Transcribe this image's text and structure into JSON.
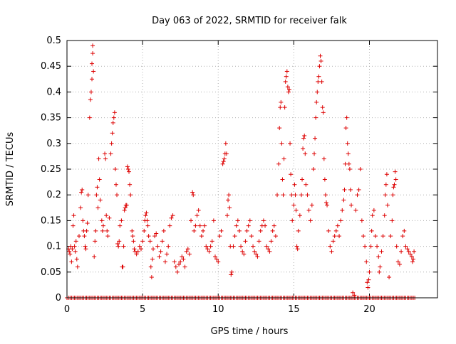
{
  "chart_data": {
    "type": "scatter",
    "title": "Day 063 of 2022, SRMTID for receiver falk",
    "xlabel": "GPS time / hours",
    "ylabel": "SRMTID / TECUs",
    "xlim": [
      0,
      24.5
    ],
    "ylim": [
      0,
      0.5
    ],
    "xticks": [
      0,
      5,
      10,
      15,
      20
    ],
    "yticks": [
      0,
      0.05,
      0.1,
      0.15,
      0.2,
      0.25,
      0.3,
      0.35,
      0.4,
      0.45,
      0.5
    ],
    "grid": true,
    "marker": "+",
    "color": "#dd0000",
    "series": [
      {
        "name": "",
        "points": [
          [
            0.1,
            0.095
          ],
          [
            0.15,
            0.09
          ],
          [
            0.2,
            0.085
          ],
          [
            0.25,
            0.1
          ],
          [
            0.3,
            0.07
          ],
          [
            0.35,
            0.095
          ],
          [
            0.4,
            0.14
          ],
          [
            0.45,
            0.16
          ],
          [
            0.5,
            0.1
          ],
          [
            0.55,
            0.09
          ],
          [
            0.6,
            0.11
          ],
          [
            0.65,
            0.075
          ],
          [
            0.7,
            0.06
          ],
          [
            0.8,
            0.12
          ],
          [
            0.9,
            0.175
          ],
          [
            0.95,
            0.205
          ],
          [
            1.0,
            0.21
          ],
          [
            1.05,
            0.15
          ],
          [
            1.1,
            0.13
          ],
          [
            1.15,
            0.12
          ],
          [
            1.2,
            0.1
          ],
          [
            1.25,
            0.095
          ],
          [
            1.3,
            0.13
          ],
          [
            1.35,
            0.145
          ],
          [
            1.4,
            0.2
          ],
          [
            1.5,
            0.35
          ],
          [
            1.55,
            0.385
          ],
          [
            1.6,
            0.4
          ],
          [
            1.65,
            0.425
          ],
          [
            1.65,
            0.455
          ],
          [
            1.7,
            0.475
          ],
          [
            1.7,
            0.49
          ],
          [
            1.75,
            0.44
          ],
          [
            1.8,
            0.08
          ],
          [
            1.85,
            0.11
          ],
          [
            1.9,
            0.13
          ],
          [
            1.95,
            0.2
          ],
          [
            2.0,
            0.215
          ],
          [
            2.05,
            0.175
          ],
          [
            2.1,
            0.27
          ],
          [
            2.15,
            0.23
          ],
          [
            2.2,
            0.19
          ],
          [
            2.3,
            0.15
          ],
          [
            2.35,
            0.13
          ],
          [
            2.4,
            0.14
          ],
          [
            2.5,
            0.28
          ],
          [
            2.55,
            0.27
          ],
          [
            2.6,
            0.16
          ],
          [
            2.65,
            0.13
          ],
          [
            2.7,
            0.12
          ],
          [
            2.8,
            0.155
          ],
          [
            2.9,
            0.28
          ],
          [
            2.95,
            0.3
          ],
          [
            3.0,
            0.32
          ],
          [
            3.05,
            0.34
          ],
          [
            3.1,
            0.35
          ],
          [
            3.15,
            0.36
          ],
          [
            3.2,
            0.25
          ],
          [
            3.25,
            0.22
          ],
          [
            3.3,
            0.2
          ],
          [
            3.35,
            0.105
          ],
          [
            3.4,
            0.1
          ],
          [
            3.45,
            0.11
          ],
          [
            3.5,
            0.14
          ],
          [
            3.6,
            0.15
          ],
          [
            3.65,
            0.06
          ],
          [
            3.7,
            0.06
          ],
          [
            3.75,
            0.1
          ],
          [
            3.8,
            0.17
          ],
          [
            3.85,
            0.175
          ],
          [
            3.9,
            0.18
          ],
          [
            3.95,
            0.18
          ],
          [
            4.0,
            0.255
          ],
          [
            4.05,
            0.25
          ],
          [
            4.1,
            0.245
          ],
          [
            4.15,
            0.22
          ],
          [
            4.2,
            0.2
          ],
          [
            4.3,
            0.13
          ],
          [
            4.35,
            0.12
          ],
          [
            4.4,
            0.11
          ],
          [
            4.45,
            0.095
          ],
          [
            4.5,
            0.09
          ],
          [
            4.6,
            0.085
          ],
          [
            4.7,
            0.09
          ],
          [
            4.8,
            0.1
          ],
          [
            4.9,
            0.095
          ],
          [
            5.0,
            0.11
          ],
          [
            5.1,
            0.13
          ],
          [
            5.15,
            0.15
          ],
          [
            5.2,
            0.16
          ],
          [
            5.25,
            0.165
          ],
          [
            5.3,
            0.15
          ],
          [
            5.35,
            0.14
          ],
          [
            5.4,
            0.12
          ],
          [
            5.5,
            0.11
          ],
          [
            5.55,
            0.06
          ],
          [
            5.6,
            0.04
          ],
          [
            5.65,
            0.075
          ],
          [
            5.7,
            0.095
          ],
          [
            5.8,
            0.12
          ],
          [
            5.9,
            0.125
          ],
          [
            6.0,
            0.1
          ],
          [
            6.1,
            0.08
          ],
          [
            6.2,
            0.09
          ],
          [
            6.3,
            0.11
          ],
          [
            6.4,
            0.13
          ],
          [
            6.5,
            0.07
          ],
          [
            6.6,
            0.085
          ],
          [
            6.7,
            0.1
          ],
          [
            6.8,
            0.14
          ],
          [
            6.9,
            0.155
          ],
          [
            7.0,
            0.16
          ],
          [
            7.1,
            0.07
          ],
          [
            7.2,
            0.06
          ],
          [
            7.3,
            0.05
          ],
          [
            7.4,
            0.065
          ],
          [
            7.5,
            0.07
          ],
          [
            7.6,
            0.08
          ],
          [
            7.7,
            0.075
          ],
          [
            7.8,
            0.06
          ],
          [
            7.9,
            0.09
          ],
          [
            8.0,
            0.095
          ],
          [
            8.1,
            0.085
          ],
          [
            8.2,
            0.15
          ],
          [
            8.3,
            0.205
          ],
          [
            8.35,
            0.2
          ],
          [
            8.4,
            0.13
          ],
          [
            8.5,
            0.14
          ],
          [
            8.6,
            0.16
          ],
          [
            8.7,
            0.17
          ],
          [
            8.8,
            0.14
          ],
          [
            8.9,
            0.12
          ],
          [
            9.0,
            0.13
          ],
          [
            9.1,
            0.14
          ],
          [
            9.2,
            0.1
          ],
          [
            9.3,
            0.095
          ],
          [
            9.4,
            0.09
          ],
          [
            9.5,
            0.1
          ],
          [
            9.6,
            0.11
          ],
          [
            9.7,
            0.15
          ],
          [
            9.8,
            0.08
          ],
          [
            9.9,
            0.075
          ],
          [
            10.0,
            0.07
          ],
          [
            10.1,
            0.12
          ],
          [
            10.2,
            0.13
          ],
          [
            10.3,
            0.26
          ],
          [
            10.35,
            0.265
          ],
          [
            10.4,
            0.27
          ],
          [
            10.45,
            0.28
          ],
          [
            10.5,
            0.3
          ],
          [
            10.55,
            0.28
          ],
          [
            10.6,
            0.16
          ],
          [
            10.65,
            0.19
          ],
          [
            10.7,
            0.2
          ],
          [
            10.75,
            0.175
          ],
          [
            10.8,
            0.1
          ],
          [
            10.85,
            0.045
          ],
          [
            10.9,
            0.05
          ],
          [
            11.0,
            0.1
          ],
          [
            11.1,
            0.12
          ],
          [
            11.2,
            0.14
          ],
          [
            11.3,
            0.15
          ],
          [
            11.4,
            0.13
          ],
          [
            11.5,
            0.1
          ],
          [
            11.6,
            0.09
          ],
          [
            11.7,
            0.085
          ],
          [
            11.8,
            0.11
          ],
          [
            11.9,
            0.13
          ],
          [
            12.0,
            0.14
          ],
          [
            12.1,
            0.15
          ],
          [
            12.2,
            0.12
          ],
          [
            12.3,
            0.1
          ],
          [
            12.4,
            0.09
          ],
          [
            12.5,
            0.085
          ],
          [
            12.6,
            0.08
          ],
          [
            12.7,
            0.11
          ],
          [
            12.8,
            0.13
          ],
          [
            12.9,
            0.14
          ],
          [
            13.0,
            0.15
          ],
          [
            13.1,
            0.14
          ],
          [
            13.2,
            0.1
          ],
          [
            13.3,
            0.095
          ],
          [
            13.4,
            0.09
          ],
          [
            13.5,
            0.11
          ],
          [
            13.6,
            0.13
          ],
          [
            13.7,
            0.14
          ],
          [
            13.8,
            0.12
          ],
          [
            13.9,
            0.2
          ],
          [
            14.0,
            0.26
          ],
          [
            14.05,
            0.33
          ],
          [
            14.1,
            0.37
          ],
          [
            14.15,
            0.38
          ],
          [
            14.2,
            0.3
          ],
          [
            14.25,
            0.23
          ],
          [
            14.3,
            0.2
          ],
          [
            14.35,
            0.27
          ],
          [
            14.4,
            0.37
          ],
          [
            14.45,
            0.42
          ],
          [
            14.5,
            0.43
          ],
          [
            14.55,
            0.44
          ],
          [
            14.6,
            0.41
          ],
          [
            14.65,
            0.4
          ],
          [
            14.7,
            0.405
          ],
          [
            14.75,
            0.3
          ],
          [
            14.8,
            0.24
          ],
          [
            14.85,
            0.2
          ],
          [
            14.9,
            0.15
          ],
          [
            15.0,
            0.18
          ],
          [
            15.05,
            0.22
          ],
          [
            15.1,
            0.2
          ],
          [
            15.15,
            0.17
          ],
          [
            15.2,
            0.1
          ],
          [
            15.25,
            0.095
          ],
          [
            15.3,
            0.13
          ],
          [
            15.4,
            0.16
          ],
          [
            15.5,
            0.2
          ],
          [
            15.55,
            0.23
          ],
          [
            15.6,
            0.29
          ],
          [
            15.65,
            0.31
          ],
          [
            15.7,
            0.315
          ],
          [
            15.75,
            0.28
          ],
          [
            15.8,
            0.22
          ],
          [
            15.9,
            0.2
          ],
          [
            16.0,
            0.17
          ],
          [
            16.1,
            0.15
          ],
          [
            16.2,
            0.18
          ],
          [
            16.3,
            0.25
          ],
          [
            16.35,
            0.28
          ],
          [
            16.4,
            0.31
          ],
          [
            16.45,
            0.35
          ],
          [
            16.5,
            0.38
          ],
          [
            16.55,
            0.4
          ],
          [
            16.6,
            0.42
          ],
          [
            16.65,
            0.43
          ],
          [
            16.7,
            0.45
          ],
          [
            16.75,
            0.47
          ],
          [
            16.8,
            0.46
          ],
          [
            16.85,
            0.42
          ],
          [
            16.9,
            0.37
          ],
          [
            16.95,
            0.36
          ],
          [
            17.0,
            0.27
          ],
          [
            17.05,
            0.23
          ],
          [
            17.1,
            0.2
          ],
          [
            17.15,
            0.185
          ],
          [
            17.2,
            0.18
          ],
          [
            17.3,
            0.13
          ],
          [
            17.4,
            0.1
          ],
          [
            17.5,
            0.09
          ],
          [
            17.6,
            0.11
          ],
          [
            17.7,
            0.12
          ],
          [
            17.8,
            0.13
          ],
          [
            17.9,
            0.14
          ],
          [
            18.0,
            0.12
          ],
          [
            18.1,
            0.15
          ],
          [
            18.2,
            0.17
          ],
          [
            18.3,
            0.19
          ],
          [
            18.35,
            0.21
          ],
          [
            18.4,
            0.26
          ],
          [
            18.45,
            0.33
          ],
          [
            18.5,
            0.35
          ],
          [
            18.55,
            0.3
          ],
          [
            18.6,
            0.28
          ],
          [
            18.65,
            0.26
          ],
          [
            18.7,
            0.25
          ],
          [
            18.75,
            0.21
          ],
          [
            18.8,
            0.18
          ],
          [
            18.9,
            0.01
          ],
          [
            19.0,
            0.005
          ],
          [
            19.1,
            0.17
          ],
          [
            19.2,
            0.2
          ],
          [
            19.3,
            0.21
          ],
          [
            19.4,
            0.25
          ],
          [
            19.5,
            0.15
          ],
          [
            19.6,
            0.12
          ],
          [
            19.7,
            0.1
          ],
          [
            19.8,
            0.07
          ],
          [
            19.85,
            0.03
          ],
          [
            19.9,
            0.02
          ],
          [
            19.95,
            0.035
          ],
          [
            20.0,
            0.05
          ],
          [
            20.1,
            0.1
          ],
          [
            20.15,
            0.13
          ],
          [
            20.2,
            0.16
          ],
          [
            20.3,
            0.17
          ],
          [
            20.4,
            0.12
          ],
          [
            20.5,
            0.1
          ],
          [
            20.6,
            0.08
          ],
          [
            20.65,
            0.05
          ],
          [
            20.7,
            0.06
          ],
          [
            20.8,
            0.09
          ],
          [
            20.9,
            0.12
          ],
          [
            21.0,
            0.16
          ],
          [
            21.05,
            0.2
          ],
          [
            21.1,
            0.22
          ],
          [
            21.15,
            0.24
          ],
          [
            21.2,
            0.18
          ],
          [
            21.3,
            0.04
          ],
          [
            21.4,
            0.12
          ],
          [
            21.5,
            0.15
          ],
          [
            21.55,
            0.2
          ],
          [
            21.6,
            0.215
          ],
          [
            21.65,
            0.22
          ],
          [
            21.7,
            0.245
          ],
          [
            21.75,
            0.23
          ],
          [
            21.8,
            0.1
          ],
          [
            21.9,
            0.07
          ],
          [
            22.0,
            0.065
          ],
          [
            22.1,
            0.09
          ],
          [
            22.2,
            0.12
          ],
          [
            22.3,
            0.13
          ],
          [
            22.4,
            0.1
          ],
          [
            22.5,
            0.095
          ],
          [
            22.6,
            0.09
          ],
          [
            22.7,
            0.085
          ],
          [
            22.8,
            0.08
          ],
          [
            22.85,
            0.07
          ],
          [
            22.9,
            0.075
          ],
          [
            22.95,
            0.09
          ]
        ],
        "zero_band": [
          0.0,
          23.0
        ]
      }
    ]
  }
}
